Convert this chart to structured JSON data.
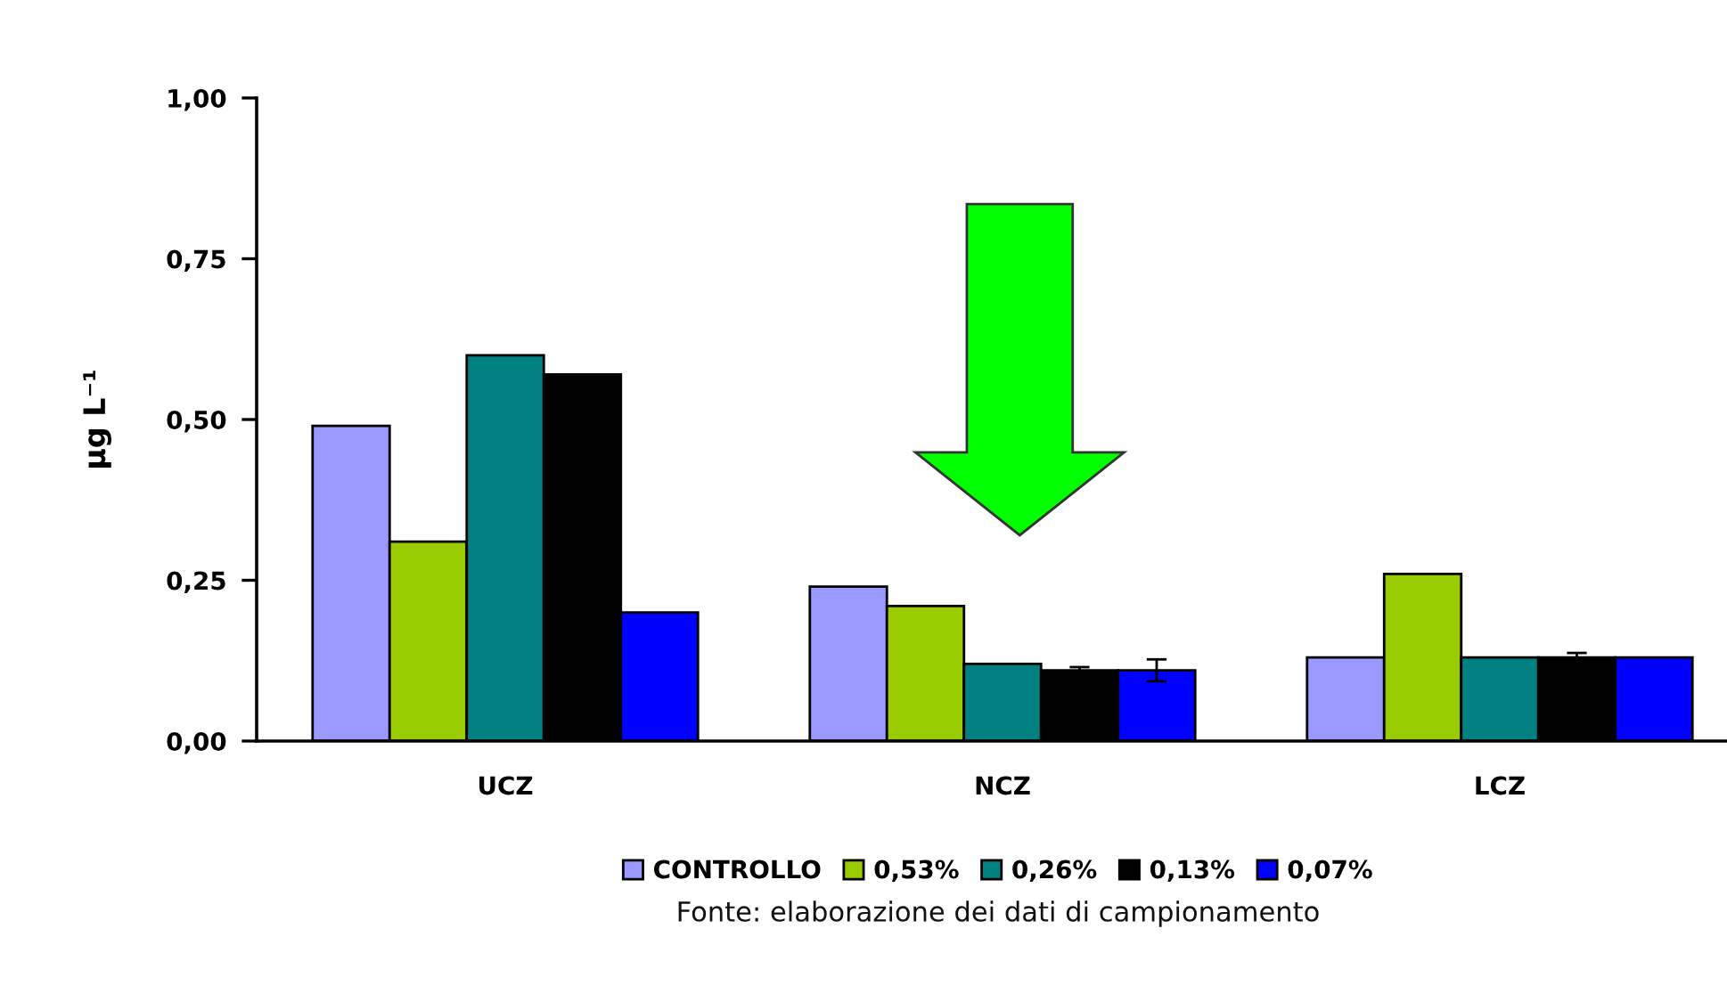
{
  "chart_data": {
    "type": "bar",
    "categories": [
      "UCZ",
      "NCZ",
      "LCZ"
    ],
    "series": [
      {
        "name": "CONTROLLO",
        "color": "#9999ff",
        "values": [
          0.49,
          0.24,
          0.13
        ]
      },
      {
        "name": "0,53%",
        "color": "#99cc00",
        "values": [
          0.31,
          0.21,
          0.26
        ]
      },
      {
        "name": "0,26%",
        "color": "#008080",
        "values": [
          0.6,
          0.12,
          0.13
        ]
      },
      {
        "name": "0,13%",
        "color": "#000000",
        "values": [
          0.57,
          0.11,
          0.13
        ],
        "errors": [
          null,
          0.005,
          0.007
        ]
      },
      {
        "name": "0,07%",
        "color": "#0000ff",
        "values": [
          0.2,
          0.11,
          0.13
        ],
        "errors": [
          null,
          0.017,
          null
        ]
      }
    ],
    "ylabel": "µg L⁻¹",
    "ylim": [
      0,
      1
    ],
    "yticks": [
      {
        "value": 0,
        "label": "0,00"
      },
      {
        "value": 0.25,
        "label": "0,25"
      },
      {
        "value": 0.5,
        "label": "0,50"
      },
      {
        "value": 0.75,
        "label": "0,75"
      },
      {
        "value": 1,
        "label": "1,00"
      }
    ],
    "legend": "bottom",
    "annotations": [
      "Fonte: elaborazione dei dati di campionamento"
    ]
  }
}
